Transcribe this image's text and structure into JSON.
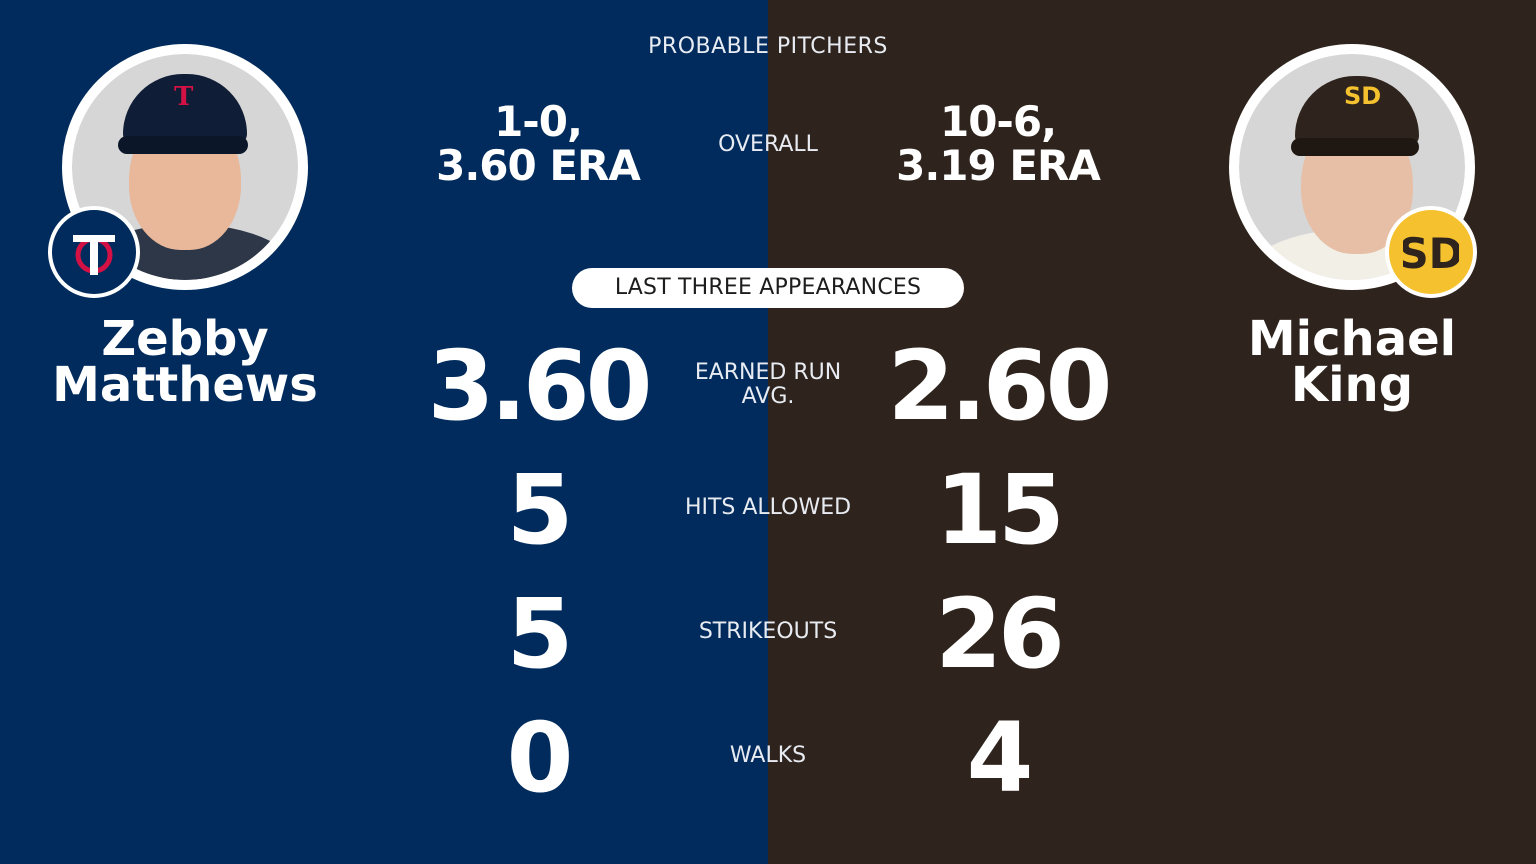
{
  "header": "PROBABLE PITCHERS",
  "colors": {
    "twins_navy": "#002b5c",
    "twins_red": "#d31145",
    "padres_brown": "#2f241d",
    "padres_gold": "#f5c12e"
  },
  "left_pitcher": {
    "first_name": "Zebby",
    "last_name": "Matthews",
    "team_logo": "twins-tc-logo",
    "overall_line1": "1-0,",
    "overall_line2": "3.60 ERA"
  },
  "right_pitcher": {
    "first_name": "Michael",
    "last_name": "King",
    "team_logo": "padres-sd-logo",
    "overall_line1": "10-6,",
    "overall_line2": "3.19 ERA"
  },
  "overall_label": "OVERALL",
  "section_title": "LAST THREE APPEARANCES",
  "stats": [
    {
      "label_line1": "EARNED RUN",
      "label_line2": "AVG.",
      "left": "3.60",
      "right": "2.60"
    },
    {
      "label_line1": "HITS ALLOWED",
      "label_line2": "",
      "left": "5",
      "right": "15"
    },
    {
      "label_line1": "STRIKEOUTS",
      "label_line2": "",
      "left": "5",
      "right": "26"
    },
    {
      "label_line1": "WALKS",
      "label_line2": "",
      "left": "0",
      "right": "4"
    }
  ]
}
